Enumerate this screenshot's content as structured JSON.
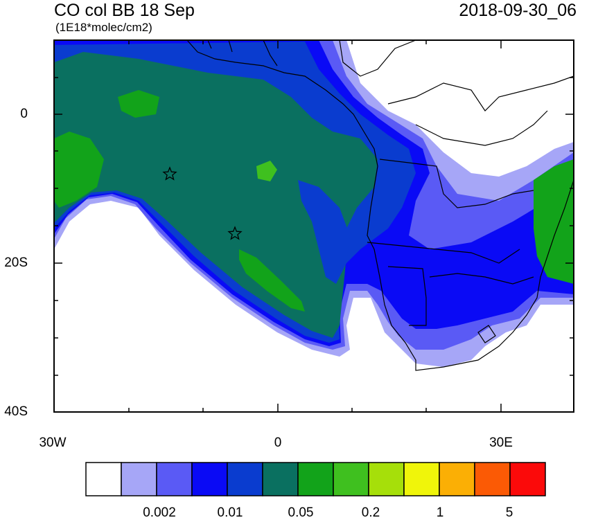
{
  "header": {
    "title": "CO col BB 18 Sep",
    "units": "(1E18*molec/cm2)",
    "date": "2018-09-30_06"
  },
  "axes": {
    "y_labels": [
      "0",
      "20S",
      "40S"
    ],
    "x_labels": [
      "30W",
      "0",
      "30E"
    ]
  },
  "colorbar": {
    "colors": [
      "#ffffff",
      "#a6a6f7",
      "#5a5af5",
      "#0a0af5",
      "#0a3ccf",
      "#0a7060",
      "#12a31a",
      "#3fc01f",
      "#a6df0a",
      "#f0f50a",
      "#fbaf05",
      "#fb5a05",
      "#fb0a0a"
    ],
    "labels": [
      "0.002",
      "0.01",
      "0.05",
      "0.2",
      "1",
      "5"
    ]
  },
  "markers": [
    "star",
    "star"
  ]
}
